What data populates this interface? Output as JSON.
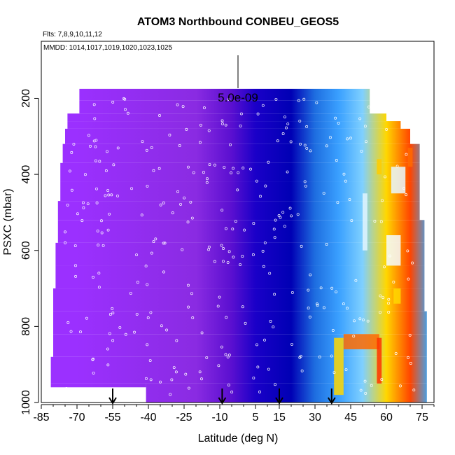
{
  "chart_data": {
    "type": "heatmap",
    "title": "ATOM3 Northbound CONBEU_GEOS5",
    "subtitle_flights": "Flts: 7,8,9,10,11,12",
    "subtitle_dates": "MMDD: 1014,1017,1019,1020,1023,1025",
    "xlabel": "Latitude (deg N)",
    "ylabel": "PSXC (mbar)",
    "xlim": [
      -85,
      80
    ],
    "ylim": [
      1000,
      50
    ],
    "x_ticks": [
      -85,
      -70,
      -55,
      -40,
      -25,
      -10,
      5,
      15,
      30,
      45,
      60,
      75
    ],
    "y_ticks": [
      200,
      400,
      600,
      800,
      1000
    ],
    "scale_label": "5.0e-09",
    "arrow_latitudes": [
      -55,
      -9,
      15,
      37
    ],
    "color_bands": [
      {
        "lat": -70,
        "color": "#9b30ff"
      },
      {
        "lat": -20,
        "color": "#8a2be2"
      },
      {
        "lat": -5,
        "color": "#5a0fd0"
      },
      {
        "lat": 5,
        "color": "#1a00c8"
      },
      {
        "lat": 20,
        "color": "#0000b4"
      },
      {
        "lat": 30,
        "color": "#1e6ee0"
      },
      {
        "lat": 40,
        "color": "#3aa0ff"
      },
      {
        "lat": 50,
        "color": "#7fd0ff"
      },
      {
        "lat": 60,
        "color": "#ffd700"
      },
      {
        "lat": 70,
        "color": "#ff4500"
      },
      {
        "lat": 78,
        "color": "#33aaff"
      }
    ]
  }
}
